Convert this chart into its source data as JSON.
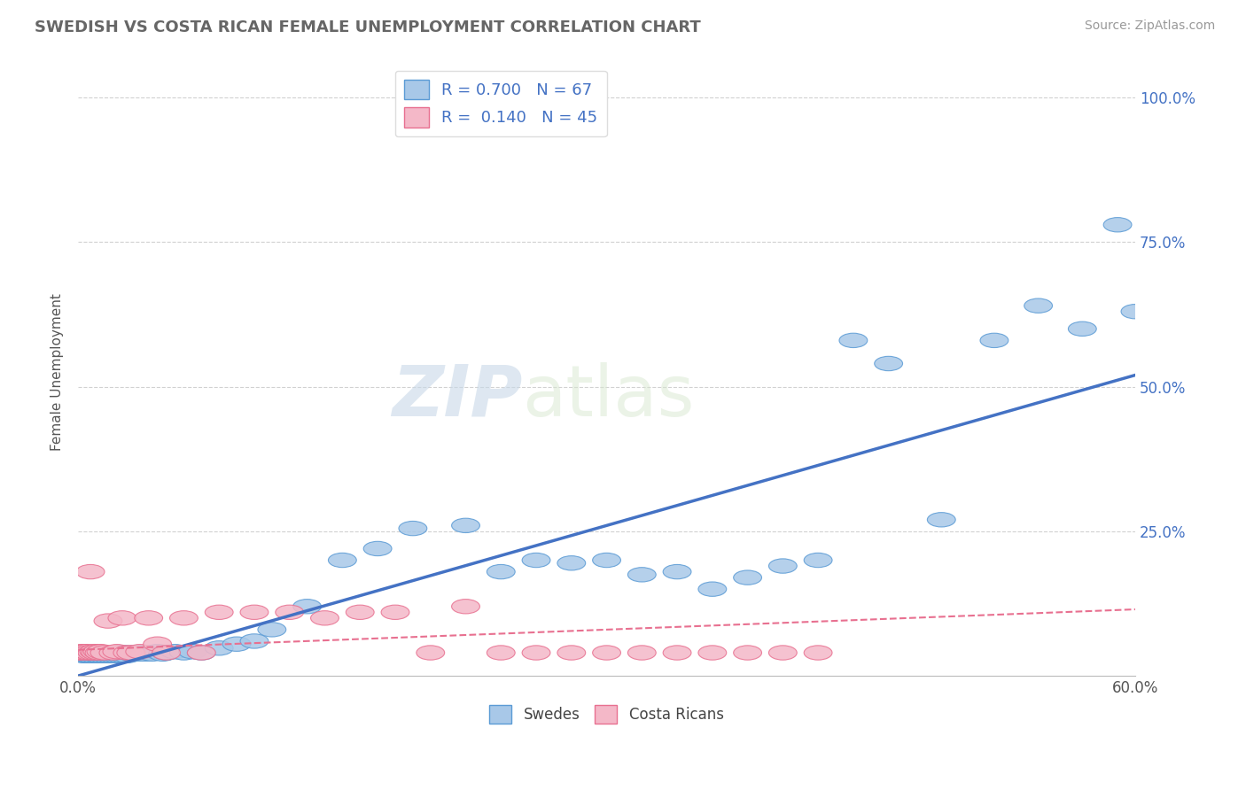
{
  "title": "SWEDISH VS COSTA RICAN FEMALE UNEMPLOYMENT CORRELATION CHART",
  "source_text": "Source: ZipAtlas.com",
  "ylabel": "Female Unemployment",
  "xlim": [
    0.0,
    0.6
  ],
  "ylim": [
    0.0,
    1.05
  ],
  "ytick_vals": [
    0.25,
    0.5,
    0.75,
    1.0
  ],
  "background_color": "#ffffff",
  "grid_color": "#cccccc",
  "swedes_color": "#a8c8e8",
  "swedes_edge_color": "#5b9bd5",
  "swedes_line_color": "#4472c4",
  "costa_color": "#f4b8c8",
  "costa_edge_color": "#e87090",
  "watermark_color": "#e8eef5",
  "legend_R_swedes": "0.700",
  "legend_N_swedes": "67",
  "legend_R_costa": "0.140",
  "legend_N_costa": "45",
  "sw_trend_x": [
    0.0,
    0.6
  ],
  "sw_trend_y": [
    0.0,
    0.52
  ],
  "cr_trend_x": [
    0.0,
    0.6
  ],
  "cr_trend_y": [
    0.045,
    0.115
  ],
  "swedes_x": [
    0.003,
    0.004,
    0.005,
    0.006,
    0.007,
    0.008,
    0.009,
    0.01,
    0.011,
    0.012,
    0.013,
    0.014,
    0.015,
    0.016,
    0.017,
    0.018,
    0.019,
    0.02,
    0.021,
    0.022,
    0.023,
    0.024,
    0.025,
    0.026,
    0.027,
    0.028,
    0.03,
    0.032,
    0.034,
    0.036,
    0.038,
    0.04,
    0.042,
    0.045,
    0.048,
    0.05,
    0.055,
    0.06,
    0.065,
    0.07,
    0.08,
    0.09,
    0.1,
    0.11,
    0.13,
    0.15,
    0.17,
    0.19,
    0.22,
    0.24,
    0.26,
    0.28,
    0.3,
    0.32,
    0.34,
    0.36,
    0.38,
    0.4,
    0.42,
    0.44,
    0.46,
    0.49,
    0.52,
    0.545,
    0.57,
    0.59,
    0.6
  ],
  "swedes_y": [
    0.035,
    0.035,
    0.038,
    0.035,
    0.035,
    0.038,
    0.035,
    0.038,
    0.035,
    0.035,
    0.038,
    0.035,
    0.038,
    0.035,
    0.038,
    0.035,
    0.038,
    0.035,
    0.038,
    0.035,
    0.04,
    0.035,
    0.038,
    0.035,
    0.04,
    0.035,
    0.038,
    0.04,
    0.038,
    0.04,
    0.038,
    0.04,
    0.038,
    0.042,
    0.038,
    0.04,
    0.042,
    0.04,
    0.042,
    0.04,
    0.048,
    0.055,
    0.06,
    0.08,
    0.12,
    0.2,
    0.22,
    0.255,
    0.26,
    0.18,
    0.2,
    0.195,
    0.2,
    0.175,
    0.18,
    0.15,
    0.17,
    0.19,
    0.2,
    0.58,
    0.54,
    0.27,
    0.58,
    0.64,
    0.6,
    0.78,
    0.63
  ],
  "costa_x": [
    0.0,
    0.001,
    0.002,
    0.003,
    0.004,
    0.005,
    0.006,
    0.007,
    0.008,
    0.009,
    0.01,
    0.011,
    0.012,
    0.013,
    0.015,
    0.017,
    0.02,
    0.022,
    0.025,
    0.028,
    0.03,
    0.035,
    0.04,
    0.045,
    0.05,
    0.06,
    0.07,
    0.08,
    0.1,
    0.12,
    0.14,
    0.16,
    0.18,
    0.2,
    0.22,
    0.24,
    0.26,
    0.28,
    0.3,
    0.32,
    0.34,
    0.36,
    0.38,
    0.4,
    0.42
  ],
  "costa_y": [
    0.04,
    0.04,
    0.042,
    0.042,
    0.04,
    0.042,
    0.04,
    0.18,
    0.04,
    0.042,
    0.04,
    0.042,
    0.04,
    0.042,
    0.04,
    0.095,
    0.04,
    0.042,
    0.1,
    0.04,
    0.04,
    0.042,
    0.1,
    0.055,
    0.04,
    0.1,
    0.04,
    0.11,
    0.11,
    0.11,
    0.1,
    0.11,
    0.11,
    0.04,
    0.12,
    0.04,
    0.04,
    0.04,
    0.04,
    0.04,
    0.04,
    0.04,
    0.04,
    0.04,
    0.04
  ]
}
